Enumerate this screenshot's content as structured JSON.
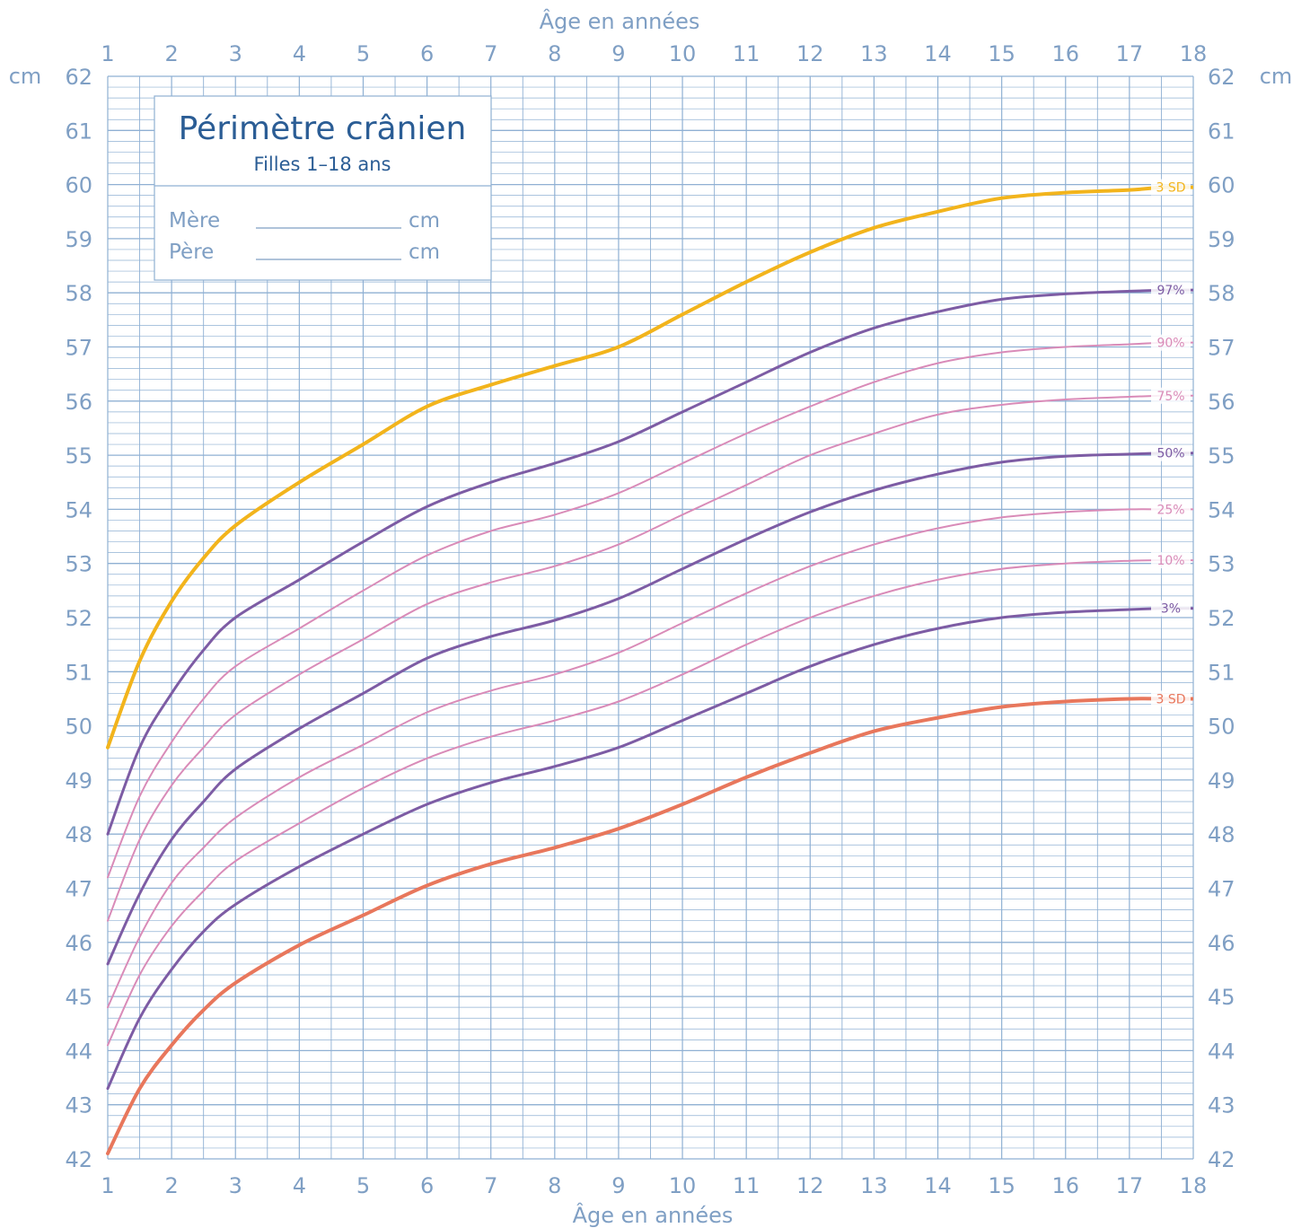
{
  "colors": {
    "grid": "#8fb0d3",
    "axis_text": "#7f9fc4",
    "title": "#2b5d95",
    "subtitle": "#2b5d95",
    "sd_plus3": "#f2b41c",
    "major_percentile": "#7d5ca4",
    "minor_percentile": "#d98bb8",
    "sd_minus3": "#e8775c"
  },
  "chart_data": {
    "type": "line",
    "title": "Périmètre crânien",
    "subtitle": "Filles 1–18 ans",
    "xlabel_top": "Âge en années",
    "xlabel_bottom": "Âge en années",
    "ylabel_left": "cm",
    "ylabel_right": "cm",
    "xlim": [
      1,
      18
    ],
    "ylim": [
      42,
      62
    ],
    "x_ticks": [
      "1",
      "2",
      "3",
      "4",
      "5",
      "6",
      "7",
      "8",
      "9",
      "10",
      "11",
      "12",
      "13",
      "14",
      "15",
      "16",
      "17",
      "18"
    ],
    "y_ticks": [
      "42",
      "43",
      "44",
      "45",
      "46",
      "47",
      "48",
      "49",
      "50",
      "51",
      "52",
      "53",
      "54",
      "55",
      "56",
      "57",
      "58",
      "59",
      "60",
      "61",
      "62"
    ],
    "grid": true,
    "parent_fields": [
      {
        "label": "Mère",
        "unit": "cm"
      },
      {
        "label": "Père",
        "unit": "cm"
      }
    ],
    "x": [
      1,
      1.5,
      2,
      2.5,
      3,
      4,
      5,
      6,
      7,
      8,
      9,
      10,
      11,
      12,
      13,
      14,
      15,
      16,
      17,
      17.5
    ],
    "series": [
      {
        "name": "3 SD",
        "color_key": "sd_plus3",
        "width": 4,
        "values": [
          49.6,
          51.2,
          52.3,
          53.1,
          53.7,
          54.5,
          55.2,
          55.9,
          56.3,
          56.65,
          57.0,
          57.6,
          58.2,
          58.75,
          59.2,
          59.5,
          59.75,
          59.85,
          59.9,
          59.95
        ]
      },
      {
        "name": "97%",
        "color_key": "major_percentile",
        "width": 3,
        "values": [
          48.0,
          49.6,
          50.6,
          51.4,
          52.0,
          52.7,
          53.4,
          54.05,
          54.5,
          54.85,
          55.25,
          55.8,
          56.35,
          56.9,
          57.35,
          57.65,
          57.88,
          57.98,
          58.03,
          58.05
        ]
      },
      {
        "name": "90%",
        "color_key": "minor_percentile",
        "width": 2,
        "values": [
          47.2,
          48.7,
          49.7,
          50.5,
          51.1,
          51.8,
          52.5,
          53.15,
          53.6,
          53.9,
          54.3,
          54.85,
          55.4,
          55.9,
          56.35,
          56.7,
          56.9,
          57.0,
          57.05,
          57.08
        ]
      },
      {
        "name": "75%",
        "color_key": "minor_percentile",
        "width": 2,
        "values": [
          46.4,
          47.9,
          48.9,
          49.6,
          50.2,
          50.95,
          51.6,
          52.25,
          52.65,
          52.95,
          53.35,
          53.9,
          54.45,
          55.0,
          55.4,
          55.75,
          55.93,
          56.03,
          56.08,
          56.1
        ]
      },
      {
        "name": "50%",
        "color_key": "major_percentile",
        "width": 3,
        "values": [
          45.6,
          46.9,
          47.9,
          48.6,
          49.2,
          49.95,
          50.6,
          51.25,
          51.65,
          51.95,
          52.35,
          52.9,
          53.45,
          53.95,
          54.35,
          54.65,
          54.87,
          54.98,
          55.02,
          55.04
        ]
      },
      {
        "name": "25%",
        "color_key": "minor_percentile",
        "width": 2,
        "values": [
          44.8,
          46.1,
          47.1,
          47.75,
          48.3,
          49.05,
          49.65,
          50.25,
          50.65,
          50.95,
          51.35,
          51.9,
          52.45,
          52.95,
          53.35,
          53.65,
          53.85,
          53.95,
          54.0,
          54.0
        ]
      },
      {
        "name": "10%",
        "color_key": "minor_percentile",
        "width": 2,
        "values": [
          44.1,
          45.4,
          46.3,
          46.95,
          47.5,
          48.2,
          48.85,
          49.4,
          49.8,
          50.1,
          50.45,
          50.95,
          51.5,
          52.0,
          52.4,
          52.7,
          52.9,
          53.0,
          53.05,
          53.06
        ]
      },
      {
        "name": "3%",
        "color_key": "major_percentile",
        "width": 3,
        "values": [
          43.3,
          44.6,
          45.5,
          46.2,
          46.7,
          47.4,
          48.0,
          48.55,
          48.95,
          49.25,
          49.6,
          50.1,
          50.6,
          51.1,
          51.5,
          51.8,
          52.0,
          52.1,
          52.15,
          52.17
        ]
      },
      {
        "name": "3 SD",
        "color_key": "sd_minus3",
        "width": 4,
        "values": [
          42.1,
          43.3,
          44.1,
          44.75,
          45.25,
          45.95,
          46.5,
          47.05,
          47.45,
          47.75,
          48.1,
          48.55,
          49.05,
          49.5,
          49.9,
          50.15,
          50.35,
          50.45,
          50.5,
          50.5
        ]
      }
    ]
  }
}
